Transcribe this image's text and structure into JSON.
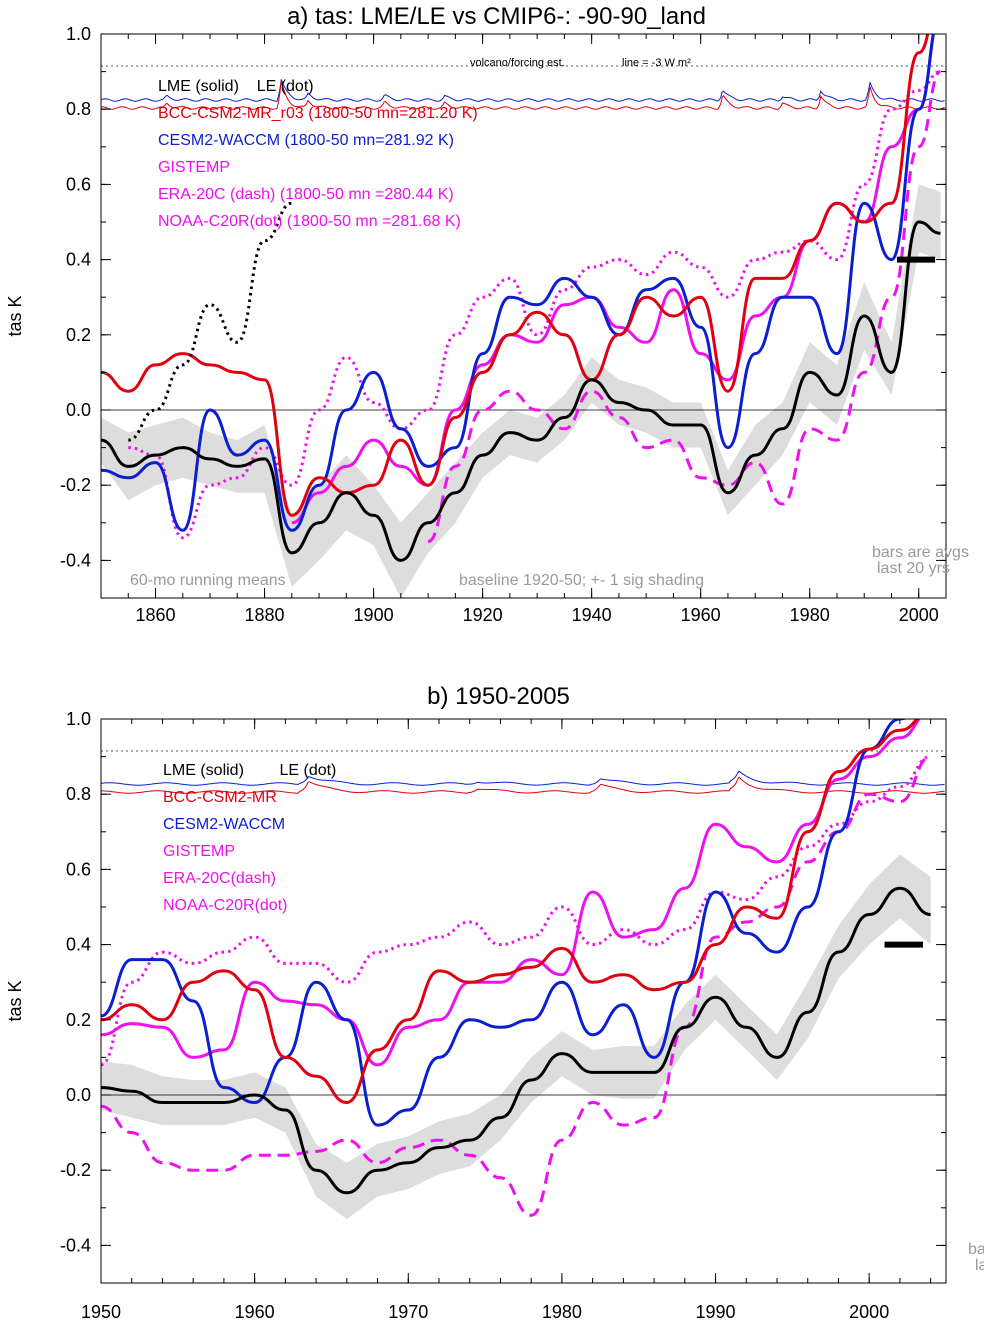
{
  "chart_data": [
    {
      "type": "line",
      "title": "a) tas: LME/LE vs CMIP6-: -90-90_land",
      "ylabel": "tas K",
      "xlim": [
        1850,
        2005
      ],
      "ylim": [
        -0.5,
        1.0
      ],
      "xticks": [
        1860,
        1880,
        1900,
        1920,
        1940,
        1960,
        1980,
        2000
      ],
      "yticks": [
        -0.4,
        -0.2,
        0.0,
        0.2,
        0.4,
        0.6,
        0.8,
        1.0
      ],
      "ytick_labels": [
        "-0.4",
        "-0.2",
        "0.0",
        "0.2",
        "0.4",
        "0.6",
        "0.8",
        "1.0"
      ],
      "volcano_label": "volcano/forcing est.",
      "line_label": "line = -3 W m²",
      "volcano_ref_y": 0.915,
      "legend": [
        {
          "text": "LME (solid)    LE (dot)",
          "color": "#000000"
        },
        {
          "text": "BCC-CSM2-MR_r03 (1800-50 mn=281.20 K)",
          "color": "#e0000f"
        },
        {
          "text": "CESM2-WACCM (1800-50 mn=281.92 K)",
          "color": "#0b1fd0"
        },
        {
          "text": "GISTEMP",
          "color": "#ee10ee"
        },
        {
          "text": "ERA-20C (dash) (1800-50 mn =280.44 K)",
          "color": "#ee10ee"
        },
        {
          "text": "NOAA-C20R(dot) (1800-50 mn =281.68 K)",
          "color": "#ee10ee"
        }
      ],
      "notes": [
        "60-mo running means",
        "baseline 1920-50; +- 1 sig shading",
        "bars are avgs",
        "last 20 yrs"
      ],
      "bar_value": 0.4,
      "bar_range": [
        1996,
        2003
      ],
      "x": [
        1850,
        1855,
        1860,
        1865,
        1870,
        1875,
        1880,
        1885,
        1890,
        1895,
        1900,
        1905,
        1910,
        1915,
        1920,
        1925,
        1930,
        1935,
        1940,
        1945,
        1950,
        1955,
        1960,
        1965,
        1970,
        1975,
        1980,
        1985,
        1990,
        1995,
        2000,
        2004
      ],
      "series": [
        {
          "name": "LME",
          "color": "#000000",
          "style": "solid",
          "values": [
            -0.08,
            -0.15,
            -0.12,
            -0.1,
            -0.13,
            -0.15,
            -0.13,
            -0.38,
            -0.3,
            -0.22,
            -0.28,
            -0.4,
            -0.3,
            -0.22,
            -0.12,
            -0.06,
            -0.08,
            -0.02,
            0.08,
            0.02,
            0.0,
            -0.04,
            -0.04,
            -0.22,
            -0.12,
            -0.05,
            0.1,
            0.04,
            0.25,
            0.1,
            0.5,
            0.47
          ]
        },
        {
          "name": "LME spread (lower)",
          "color": "#dcdcdc",
          "style": "band",
          "values": [
            -0.14,
            -0.24,
            -0.2,
            -0.18,
            -0.2,
            -0.22,
            -0.22,
            -0.47,
            -0.4,
            -0.32,
            -0.36,
            -0.5,
            -0.38,
            -0.3,
            -0.18,
            -0.12,
            -0.14,
            -0.08,
            0.02,
            -0.04,
            -0.06,
            -0.1,
            -0.1,
            -0.28,
            -0.2,
            -0.12,
            0.02,
            -0.04,
            0.16,
            0.04,
            0.42,
            0.4
          ]
        },
        {
          "name": "LME spread (upper)",
          "color": "#dcdcdc",
          "style": "band",
          "values": [
            -0.02,
            -0.06,
            -0.04,
            -0.02,
            -0.06,
            -0.08,
            -0.04,
            -0.28,
            -0.2,
            -0.12,
            -0.2,
            -0.3,
            -0.22,
            -0.14,
            -0.06,
            0.0,
            -0.02,
            0.04,
            0.14,
            0.08,
            0.06,
            0.02,
            0.02,
            -0.16,
            -0.04,
            0.02,
            0.18,
            0.12,
            0.34,
            0.18,
            0.6,
            0.58
          ]
        },
        {
          "name": "LE",
          "color": "#000000",
          "style": "dot",
          "values": [
            null,
            -0.08,
            0.0,
            0.12,
            0.28,
            0.18,
            0.45,
            0.55,
            null,
            null,
            null,
            null,
            null,
            null,
            null,
            null,
            null,
            null,
            null,
            null,
            null,
            null,
            null,
            null,
            null,
            null,
            null,
            null,
            null,
            null,
            null,
            null
          ]
        },
        {
          "name": "BCC-CSM2-MR_r03",
          "color": "#e0000f",
          "style": "solid",
          "values": [
            0.1,
            0.05,
            0.12,
            0.15,
            0.12,
            0.1,
            0.08,
            -0.28,
            -0.18,
            -0.22,
            -0.2,
            -0.08,
            -0.2,
            -0.02,
            0.1,
            0.2,
            0.26,
            0.2,
            0.08,
            0.2,
            0.3,
            0.25,
            0.3,
            0.05,
            0.35,
            0.35,
            0.45,
            0.55,
            0.5,
            0.55,
            0.95,
            1.1
          ]
        },
        {
          "name": "CESM2-WACCM",
          "color": "#0b1fd0",
          "style": "solid",
          "values": [
            -0.16,
            -0.18,
            -0.14,
            -0.32,
            0.0,
            -0.12,
            -0.08,
            -0.32,
            -0.2,
            0.0,
            0.1,
            -0.05,
            -0.15,
            -0.1,
            0.15,
            0.3,
            0.28,
            0.35,
            0.3,
            0.2,
            0.32,
            0.35,
            0.22,
            -0.1,
            0.15,
            0.3,
            0.3,
            0.15,
            0.55,
            0.4,
            0.8,
            1.05
          ]
        },
        {
          "name": "GISTEMP",
          "color": "#ee10ee",
          "style": "solid",
          "values": [
            null,
            null,
            null,
            -0.35,
            null,
            null,
            null,
            -0.3,
            -0.22,
            -0.15,
            -0.08,
            -0.15,
            -0.2,
            0.0,
            0.12,
            0.2,
            0.18,
            0.28,
            0.3,
            0.22,
            0.18,
            0.32,
            0.15,
            0.08,
            0.25,
            0.3,
            0.45,
            0.55,
            0.5,
            0.7,
            0.8,
            1.05
          ]
        },
        {
          "name": "ERA-20C",
          "color": "#ee10ee",
          "style": "dash",
          "values": [
            null,
            null,
            null,
            null,
            null,
            null,
            null,
            null,
            null,
            null,
            null,
            null,
            -0.35,
            -0.15,
            0.0,
            0.05,
            0.0,
            -0.05,
            0.05,
            -0.02,
            -0.1,
            -0.08,
            -0.18,
            -0.2,
            -0.14,
            -0.25,
            -0.05,
            -0.08,
            0.1,
            0.3,
            0.7,
            0.9
          ]
        },
        {
          "name": "NOAA-C20R",
          "color": "#ee10ee",
          "style": "dot",
          "values": [
            null,
            -0.1,
            -0.12,
            -0.34,
            -0.2,
            -0.18,
            -0.1,
            -0.2,
            0.0,
            0.14,
            0.02,
            -0.05,
            0.0,
            0.2,
            0.3,
            0.35,
            0.2,
            0.32,
            0.38,
            0.4,
            0.36,
            0.42,
            0.38,
            0.3,
            0.4,
            0.42,
            0.45,
            0.4,
            0.6,
            0.8,
            0.85,
            0.9
          ]
        }
      ]
    },
    {
      "type": "line",
      "title": "b) 1950-2005",
      "ylabel": "tas K",
      "xlim": [
        1950,
        2005
      ],
      "ylim": [
        -0.5,
        1.0
      ],
      "xticks": [
        1950,
        1960,
        1970,
        1980,
        1990,
        2000
      ],
      "yticks": [
        -0.4,
        -0.2,
        0.0,
        0.2,
        0.4,
        0.6,
        0.8,
        1.0
      ],
      "ytick_labels": [
        "-0.4",
        "-0.2",
        "0.0",
        "0.2",
        "0.4",
        "0.6",
        "0.8",
        "1.0"
      ],
      "volcano_ref_y": 0.915,
      "legend": [
        {
          "text": "LME (solid)        LE (dot)",
          "color": "#000000"
        },
        {
          "text": "BCC-CSM2-MR",
          "color": "#e0000f"
        },
        {
          "text": "CESM2-WACCM",
          "color": "#0b1fd0"
        },
        {
          "text": "GISTEMP",
          "color": "#ee10ee"
        },
        {
          "text": "ERA-20C(dash)",
          "color": "#ee10ee"
        },
        {
          "text": "NOAA-C20R(dot)",
          "color": "#ee10ee"
        }
      ],
      "notes": [
        "ba",
        "la"
      ],
      "bar_value": 0.4,
      "bar_range": [
        2001,
        2003.5
      ],
      "x": [
        1950,
        1952,
        1954,
        1956,
        1958,
        1960,
        1962,
        1964,
        1966,
        1968,
        1970,
        1972,
        1974,
        1976,
        1978,
        1980,
        1982,
        1984,
        1986,
        1988,
        1990,
        1992,
        1994,
        1996,
        1998,
        2000,
        2002,
        2004
      ],
      "series": [
        {
          "name": "LME",
          "color": "#000000",
          "style": "solid",
          "values": [
            0.02,
            0.01,
            -0.02,
            -0.02,
            -0.02,
            0.0,
            -0.04,
            -0.2,
            -0.26,
            -0.2,
            -0.18,
            -0.14,
            -0.12,
            -0.06,
            0.04,
            0.11,
            0.06,
            0.06,
            0.06,
            0.18,
            0.26,
            0.18,
            0.1,
            0.22,
            0.38,
            0.48,
            0.55,
            0.48
          ]
        },
        {
          "name": "LME spread (lower)",
          "color": "#dcdcdc",
          "style": "band",
          "values": [
            -0.04,
            -0.06,
            -0.08,
            -0.08,
            -0.08,
            -0.06,
            -0.1,
            -0.27,
            -0.33,
            -0.27,
            -0.25,
            -0.21,
            -0.19,
            -0.12,
            -0.02,
            0.05,
            0.0,
            -0.01,
            -0.01,
            0.12,
            0.2,
            0.12,
            0.04,
            0.15,
            0.31,
            0.4,
            0.47,
            0.4
          ]
        },
        {
          "name": "LME spread (upper)",
          "color": "#dcdcdc",
          "style": "band",
          "values": [
            0.09,
            0.08,
            0.05,
            0.04,
            0.04,
            0.06,
            0.02,
            -0.13,
            -0.18,
            -0.13,
            -0.11,
            -0.07,
            -0.05,
            0.0,
            0.1,
            0.17,
            0.12,
            0.13,
            0.13,
            0.24,
            0.32,
            0.24,
            0.16,
            0.3,
            0.45,
            0.56,
            0.64,
            0.58
          ]
        },
        {
          "name": "BCC-CSM2-MR",
          "color": "#e0000f",
          "style": "solid",
          "values": [
            0.2,
            0.24,
            0.2,
            0.3,
            0.33,
            0.28,
            0.1,
            0.05,
            -0.02,
            0.12,
            0.2,
            0.33,
            0.3,
            0.32,
            0.34,
            0.39,
            0.3,
            0.32,
            0.28,
            0.3,
            0.4,
            0.5,
            0.47,
            0.7,
            0.86,
            0.92,
            0.97,
            1.02
          ]
        },
        {
          "name": "CESM2-WACCM",
          "color": "#0b1fd0",
          "style": "solid",
          "values": [
            0.21,
            0.36,
            0.36,
            0.25,
            0.02,
            -0.02,
            0.1,
            0.3,
            0.2,
            -0.08,
            -0.04,
            0.1,
            0.2,
            0.18,
            0.2,
            0.3,
            0.16,
            0.24,
            0.1,
            0.3,
            0.54,
            0.43,
            0.38,
            0.5,
            0.7,
            0.92,
            1.0,
            1.05
          ]
        },
        {
          "name": "GISTEMP",
          "color": "#ee10ee",
          "style": "solid",
          "values": [
            0.16,
            0.19,
            0.18,
            0.1,
            0.12,
            0.3,
            0.25,
            0.24,
            0.2,
            0.08,
            0.18,
            0.2,
            0.3,
            0.3,
            0.36,
            0.32,
            0.54,
            0.42,
            0.44,
            0.55,
            0.72,
            0.66,
            0.62,
            0.72,
            0.84,
            0.9,
            0.95,
            1.02
          ]
        },
        {
          "name": "ERA-20C",
          "color": "#ee10ee",
          "style": "dash",
          "values": [
            -0.03,
            -0.1,
            -0.18,
            -0.2,
            -0.2,
            -0.16,
            -0.16,
            -0.15,
            -0.12,
            -0.18,
            -0.14,
            -0.12,
            -0.16,
            -0.22,
            -0.32,
            -0.12,
            -0.02,
            -0.08,
            -0.06,
            0.18,
            0.42,
            0.46,
            0.5,
            0.62,
            0.7,
            0.8,
            0.78,
            0.9
          ]
        },
        {
          "name": "NOAA-C20R",
          "color": "#ee10ee",
          "style": "dot",
          "values": [
            0.08,
            0.3,
            0.38,
            0.35,
            0.38,
            0.42,
            0.35,
            0.35,
            0.3,
            0.38,
            0.4,
            0.42,
            0.46,
            0.4,
            0.42,
            0.5,
            0.4,
            0.44,
            0.4,
            0.44,
            0.54,
            0.52,
            0.58,
            0.66,
            0.72,
            0.78,
            0.82,
            0.9
          ]
        }
      ]
    }
  ]
}
